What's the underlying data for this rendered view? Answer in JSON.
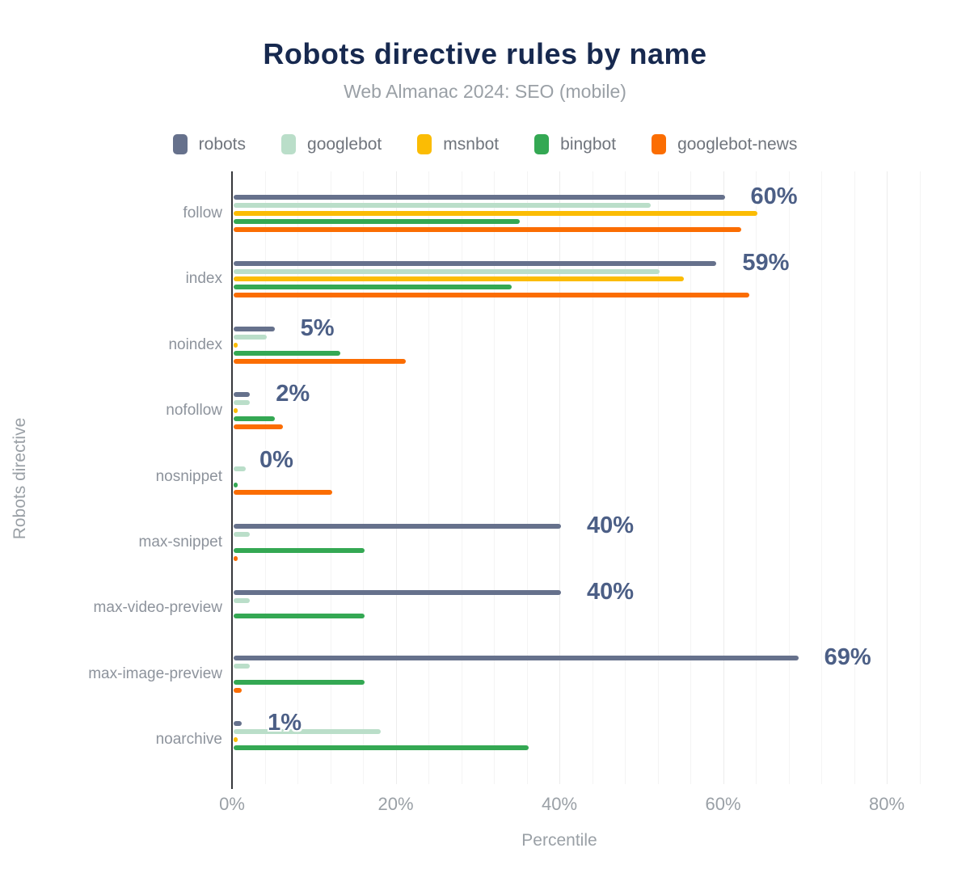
{
  "header": {
    "title": "Robots directive rules by name",
    "subtitle": "Web Almanac 2024: SEO (mobile)"
  },
  "colors": {
    "title_text": "#17294f",
    "muted_text": "#9aa0a6",
    "value_label_text": "#4c5f86",
    "axis_line": "#37383c"
  },
  "legend": {
    "items": [
      {
        "label": "robots",
        "color": "#66718c"
      },
      {
        "label": "googlebot",
        "color": "#badec9"
      },
      {
        "label": "msnbot",
        "color": "#fbbc04"
      },
      {
        "label": "bingbot",
        "color": "#34a853"
      },
      {
        "label": "googlebot-news",
        "color": "#fb6d02"
      }
    ]
  },
  "chart_data": {
    "type": "bar",
    "orientation": "horizontal",
    "title": "Robots directive rules by name",
    "subtitle": "Web Almanac 2024: SEO (mobile)",
    "xlabel": "Percentile",
    "ylabel": "Robots directive",
    "xlim": [
      0,
      80
    ],
    "x_ticks": [
      {
        "label": "0%",
        "value": 0
      },
      {
        "label": "20%",
        "value": 20
      },
      {
        "label": "40%",
        "value": 40
      },
      {
        "label": "60%",
        "value": 60
      },
      {
        "label": "80%",
        "value": 80
      }
    ],
    "grid": {
      "minor_step_pct": 4,
      "major_step_pct": 20
    },
    "legend_position": "top",
    "categories": [
      "follow",
      "index",
      "noindex",
      "nofollow",
      "nosnippet",
      "max-snippet",
      "max-video-preview",
      "max-image-preview",
      "noarchive"
    ],
    "series": [
      {
        "name": "robots",
        "color": "#66718c",
        "values": [
          60,
          59,
          5,
          2,
          0,
          40,
          40,
          69,
          1
        ]
      },
      {
        "name": "googlebot",
        "color": "#badec9",
        "values": [
          51,
          52,
          4,
          2,
          1.5,
          2,
          2,
          2,
          18
        ]
      },
      {
        "name": "msnbot",
        "color": "#fbbc04",
        "values": [
          64,
          55,
          0.5,
          0.5,
          0,
          0,
          0,
          0,
          0.5
        ]
      },
      {
        "name": "bingbot",
        "color": "#34a853",
        "values": [
          35,
          34,
          13,
          5,
          0.5,
          16,
          16,
          16,
          36
        ]
      },
      {
        "name": "googlebot-news",
        "color": "#fb6d02",
        "values": [
          62,
          63,
          21,
          6,
          12,
          0.5,
          0,
          1,
          0
        ]
      }
    ],
    "value_labels": [
      "60%",
      "59%",
      "5%",
      "2%",
      "0%",
      "40%",
      "40%",
      "69%",
      "1%"
    ],
    "value_labels_series": "robots"
  }
}
